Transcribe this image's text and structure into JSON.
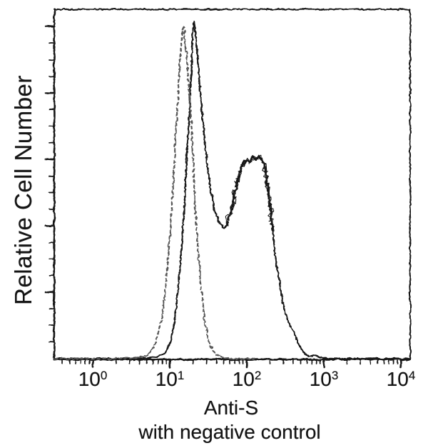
{
  "figure": {
    "background": "#ffffff",
    "ink_color": "#161616",
    "dashed_color": "#575757"
  },
  "axes": {
    "ylabel": "Relative Cell Number",
    "xlabel_line1": "Anti-S",
    "xlabel_line2": "with negative control",
    "x_ticks": [
      {
        "base": "10",
        "exp": "0"
      },
      {
        "base": "10",
        "exp": "1"
      },
      {
        "base": "10",
        "exp": "2"
      },
      {
        "base": "10",
        "exp": "3"
      },
      {
        "base": "10",
        "exp": "4"
      }
    ]
  },
  "chart_data": {
    "type": "line",
    "title": "",
    "xlabel": "Anti-S",
    "xlabel_sub": "with negative control",
    "ylabel": "Relative Cell Number",
    "x_scale": "log10",
    "x_range_log10": [
      -0.5,
      4.12
    ],
    "x_decades": [
      1,
      10,
      100,
      1000,
      10000
    ],
    "y_axis_numeric_labels": false,
    "ylim": [
      0,
      1.05
    ],
    "grid": false,
    "legend": "none",
    "series": [
      {
        "name": "Anti-S",
        "style": "solid",
        "points_log10x_relheight": [
          [
            -0.5,
            0.002
          ],
          [
            0.19,
            0.002
          ],
          [
            0.65,
            0.004
          ],
          [
            0.83,
            0.006
          ],
          [
            0.91,
            0.013
          ],
          [
            0.96,
            0.027
          ],
          [
            1.01,
            0.053
          ],
          [
            1.05,
            0.091
          ],
          [
            1.07,
            0.133
          ],
          [
            1.1,
            0.192
          ],
          [
            1.13,
            0.264
          ],
          [
            1.16,
            0.355
          ],
          [
            1.19,
            0.45
          ],
          [
            1.21,
            0.556
          ],
          [
            1.23,
            0.63
          ],
          [
            1.25,
            0.715
          ],
          [
            1.27,
            0.81
          ],
          [
            1.29,
            0.916
          ],
          [
            1.3,
            0.968
          ],
          [
            1.31,
            0.996
          ],
          [
            1.32,
            1.0
          ],
          [
            1.33,
            0.975
          ],
          [
            1.35,
            0.932
          ],
          [
            1.37,
            0.869
          ],
          [
            1.39,
            0.806
          ],
          [
            1.42,
            0.736
          ],
          [
            1.44,
            0.672
          ],
          [
            1.47,
            0.609
          ],
          [
            1.5,
            0.55
          ],
          [
            1.53,
            0.503
          ],
          [
            1.56,
            0.465
          ],
          [
            1.59,
            0.433
          ],
          [
            1.63,
            0.41
          ],
          [
            1.67,
            0.395
          ],
          [
            1.7,
            0.387
          ],
          [
            1.74,
            0.4
          ],
          [
            1.78,
            0.427
          ],
          [
            1.82,
            0.461
          ],
          [
            1.85,
            0.501
          ],
          [
            1.89,
            0.541
          ],
          [
            1.93,
            0.571
          ],
          [
            1.96,
            0.586
          ],
          [
            2.0,
            0.59
          ],
          [
            2.04,
            0.584
          ],
          [
            2.07,
            0.598
          ],
          [
            2.11,
            0.592
          ],
          [
            2.15,
            0.6
          ],
          [
            2.19,
            0.594
          ],
          [
            2.22,
            0.577
          ],
          [
            2.25,
            0.546
          ],
          [
            2.28,
            0.497
          ],
          [
            2.31,
            0.44
          ],
          [
            2.33,
            0.383
          ],
          [
            2.36,
            0.323
          ],
          [
            2.39,
            0.277
          ],
          [
            2.42,
            0.235
          ],
          [
            2.44,
            0.201
          ],
          [
            2.47,
            0.167
          ],
          [
            2.5,
            0.133
          ],
          [
            2.54,
            0.11
          ],
          [
            2.57,
            0.095
          ],
          [
            2.61,
            0.082
          ],
          [
            2.65,
            0.061
          ],
          [
            2.69,
            0.04
          ],
          [
            2.72,
            0.025
          ],
          [
            2.76,
            0.015
          ],
          [
            2.81,
            0.008
          ],
          [
            2.87,
            0.011
          ],
          [
            2.94,
            0.008
          ],
          [
            3.02,
            0.004
          ],
          [
            3.15,
            0.002
          ],
          [
            3.43,
            0.002
          ],
          [
            3.8,
            0.002
          ],
          [
            4.11,
            0.002
          ]
        ]
      },
      {
        "name": "negative control",
        "style": "dashed",
        "points_log10x_relheight": [
          [
            -0.5,
            0.002
          ],
          [
            0.09,
            0.002
          ],
          [
            0.46,
            0.004
          ],
          [
            0.65,
            0.006
          ],
          [
            0.72,
            0.015
          ],
          [
            0.79,
            0.036
          ],
          [
            0.84,
            0.07
          ],
          [
            0.89,
            0.116
          ],
          [
            0.93,
            0.175
          ],
          [
            0.96,
            0.249
          ],
          [
            0.99,
            0.334
          ],
          [
            1.02,
            0.429
          ],
          [
            1.05,
            0.535
          ],
          [
            1.07,
            0.641
          ],
          [
            1.1,
            0.746
          ],
          [
            1.12,
            0.831
          ],
          [
            1.14,
            0.905
          ],
          [
            1.16,
            0.958
          ],
          [
            1.17,
            0.983
          ],
          [
            1.19,
            0.975
          ],
          [
            1.2,
            0.937
          ],
          [
            1.23,
            0.863
          ],
          [
            1.26,
            0.768
          ],
          [
            1.29,
            0.662
          ],
          [
            1.31,
            0.556
          ],
          [
            1.33,
            0.45
          ],
          [
            1.36,
            0.345
          ],
          [
            1.39,
            0.249
          ],
          [
            1.43,
            0.165
          ],
          [
            1.46,
            0.101
          ],
          [
            1.51,
            0.055
          ],
          [
            1.56,
            0.027
          ],
          [
            1.61,
            0.013
          ],
          [
            1.69,
            0.006
          ],
          [
            1.85,
            0.002
          ],
          [
            2.1,
            0.002
          ]
        ]
      }
    ]
  }
}
